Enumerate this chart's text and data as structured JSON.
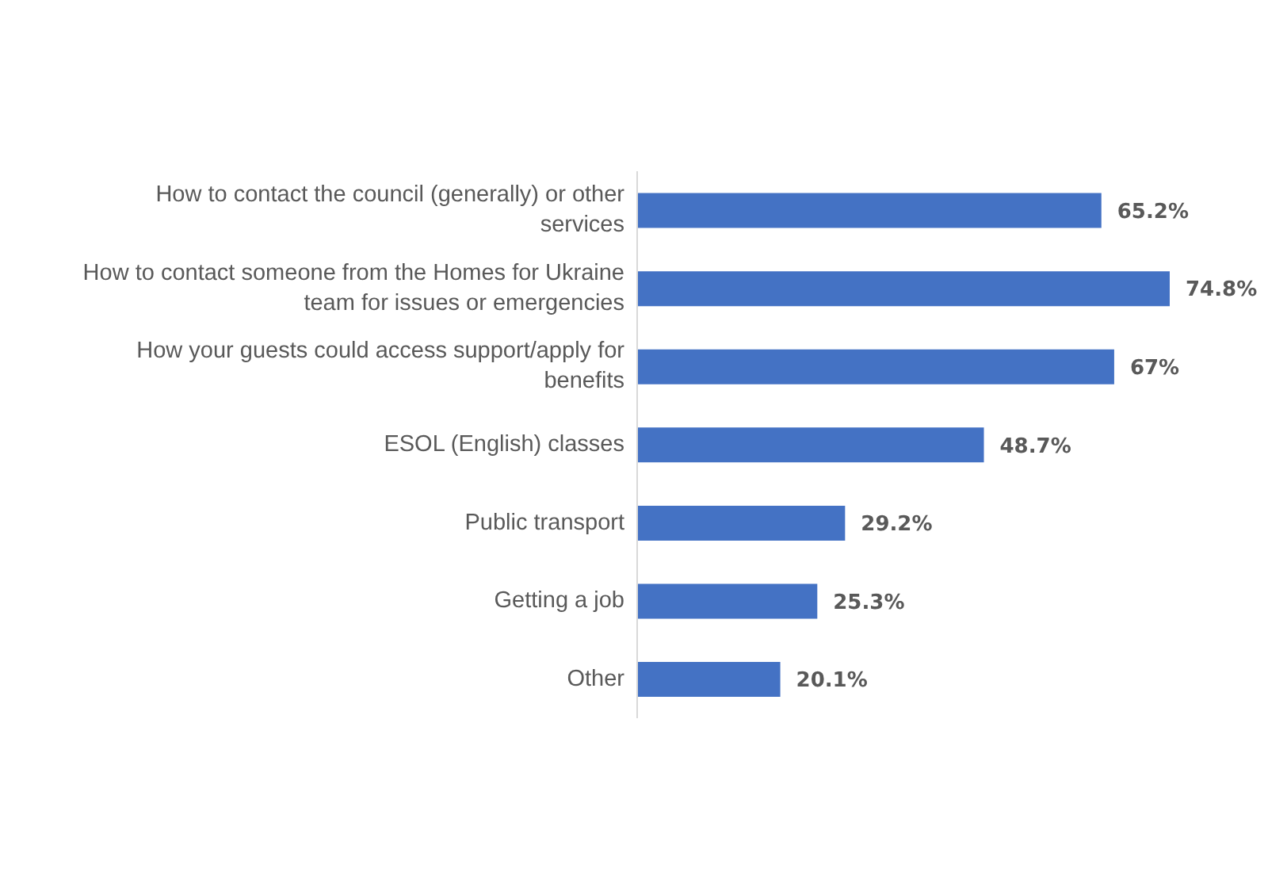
{
  "chart_data": {
    "type": "bar",
    "orientation": "horizontal",
    "categories": [
      "How to contact the council (generally) or other services",
      "How to contact someone from the Homes for Ukraine team for issues or emergencies",
      "How your guests could access support/apply for benefits",
      "ESOL (English) classes",
      "Public transport",
      "Getting a job",
      "Other"
    ],
    "values": [
      65.2,
      74.8,
      67,
      48.7,
      29.2,
      25.3,
      20.1
    ],
    "value_labels": [
      "65.2%",
      "74.8%",
      "67%",
      "48.7%",
      "29.2%",
      "25.3%",
      "20.1%"
    ],
    "color": "#4472c4",
    "grid": false,
    "legend": false
  }
}
